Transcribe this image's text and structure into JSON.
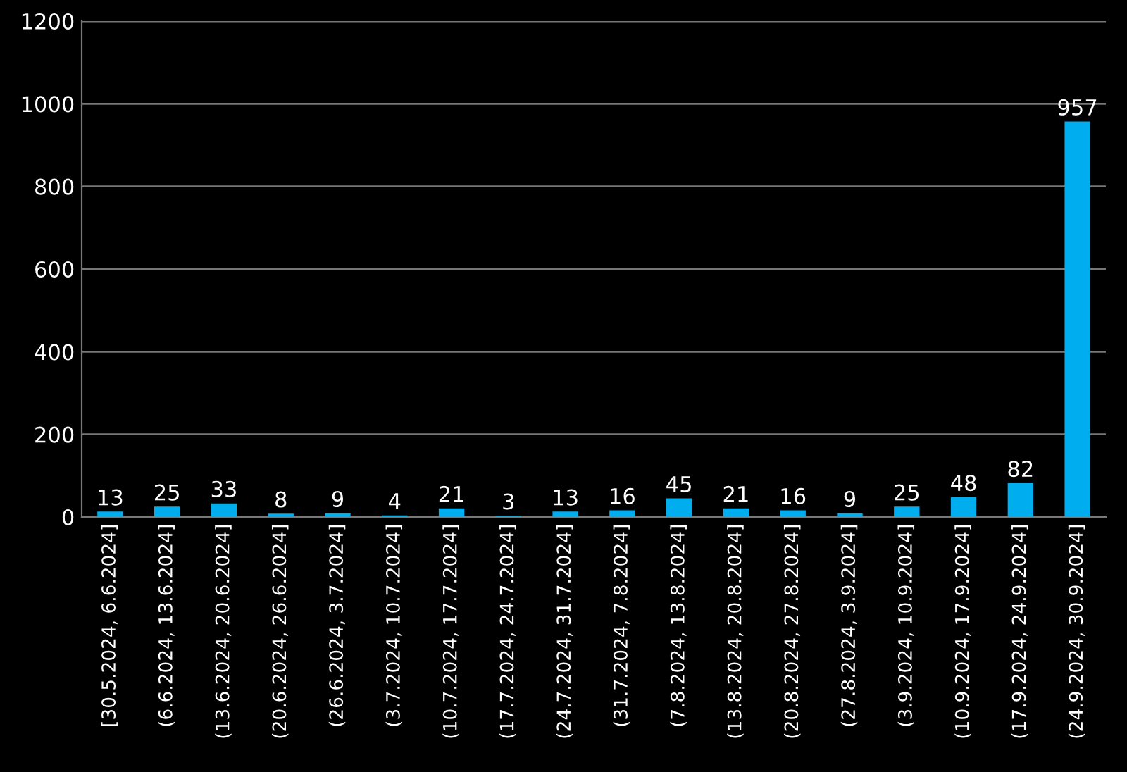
{
  "chart_data": {
    "type": "bar",
    "categories": [
      "[30.5.2024, 6.6.2024]",
      "(6.6.2024, 13.6.2024]",
      "(13.6.2024, 20.6.2024]",
      "(20.6.2024, 26.6.2024]",
      "(26.6.2024, 3.7.2024]",
      "(3.7.2024, 10.7.2024]",
      "(10.7.2024, 17.7.2024]",
      "(17.7.2024, 24.7.2024]",
      "(24.7.2024, 31.7.2024]",
      "(31.7.2024, 7.8.2024]",
      "(7.8.2024, 13.8.2024]",
      "(13.8.2024, 20.8.2024]",
      "(20.8.2024, 27.8.2024]",
      "(27.8.2024, 3.9.2024]",
      "(3.9.2024, 10.9.2024]",
      "(10.9.2024, 17.9.2024]",
      "(17.9.2024, 24.9.2024]",
      "(24.9.2024, 30.9.2024]"
    ],
    "values": [
      13,
      25,
      33,
      8,
      9,
      4,
      21,
      3,
      13,
      16,
      45,
      21,
      16,
      9,
      25,
      48,
      82,
      957
    ],
    "color": "#00aeef",
    "ylim": [
      0,
      1200
    ],
    "yticks": [
      0,
      200,
      400,
      600,
      800,
      1000,
      1200
    ],
    "grid": "y",
    "data_labels": true
  }
}
